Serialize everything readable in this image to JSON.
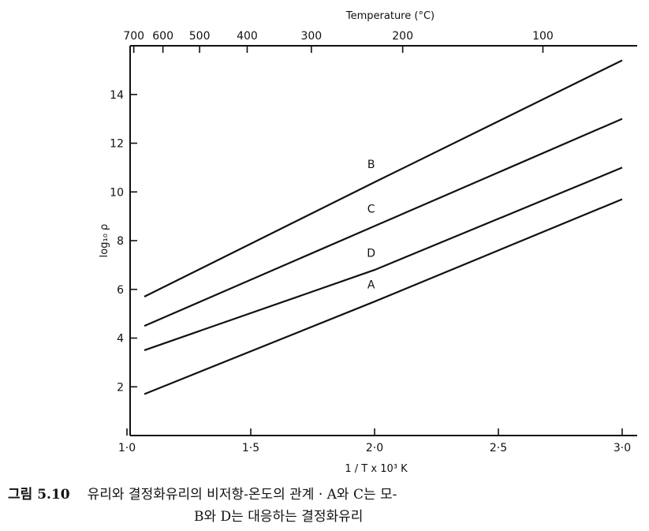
{
  "chart_data": {
    "type": "line",
    "xlabel": "1 / T x 10³ K",
    "ylabel": "log₁₀ ρ",
    "top_axis_label": "Temperature (°C)",
    "xlim": [
      1.0,
      3.0
    ],
    "ylim": [
      0,
      16
    ],
    "x_ticks": [
      1.0,
      1.5,
      2.0,
      2.5,
      3.0
    ],
    "x_tick_labels": [
      "1·0",
      "1·5",
      "2·0",
      "2·5",
      "3·0"
    ],
    "y_ticks": [
      2,
      4,
      6,
      8,
      10,
      12,
      14
    ],
    "y_tick_labels": [
      "2",
      "4",
      "6",
      "8",
      "10",
      "12",
      "14"
    ],
    "top_ticks_celsius": [
      700,
      600,
      500,
      400,
      300,
      200,
      100
    ],
    "top_tick_labels": [
      "700",
      "600",
      "500",
      "400",
      "300",
      "200",
      "100"
    ],
    "grid": false,
    "legend": "labels on lines",
    "series": [
      {
        "name": "B",
        "x": [
          1.07,
          2.0,
          3.0
        ],
        "y": [
          5.7,
          10.4,
          15.4
        ]
      },
      {
        "name": "C",
        "x": [
          1.07,
          2.0,
          3.0
        ],
        "y": [
          4.5,
          8.6,
          13.0
        ]
      },
      {
        "name": "D",
        "x": [
          1.07,
          2.0,
          3.0
        ],
        "y": [
          3.5,
          6.8,
          11.0
        ]
      },
      {
        "name": "A",
        "x": [
          1.07,
          2.0,
          3.0
        ],
        "y": [
          1.7,
          5.5,
          9.7
        ]
      }
    ]
  },
  "caption": {
    "figure_number": "그림 5.10",
    "line1": "유리와 결정화유리의 비저항-온도의 관계 · A와 C는 모-",
    "line2": "B와 D는 대응하는 결정화유리"
  }
}
